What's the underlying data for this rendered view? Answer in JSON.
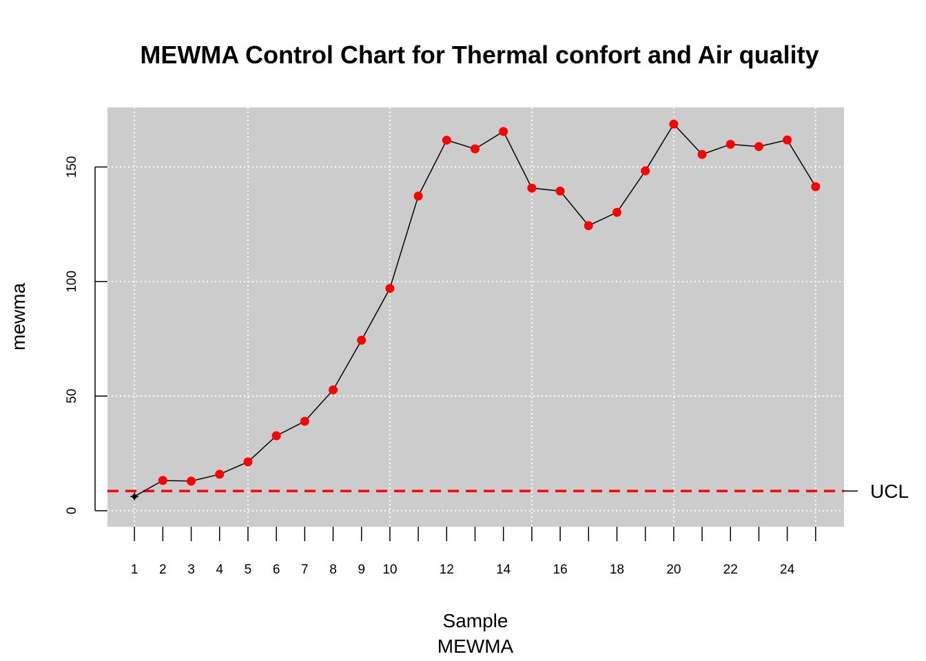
{
  "chart_data": {
    "type": "line",
    "title": "MEWMA Control Chart for Thermal confort and Air quality",
    "xlabel": "Sample",
    "xsublabel": "MEWMA",
    "ylabel": "mewma",
    "xlim": [
      0.05,
      26.0
    ],
    "ylim": [
      -7,
      176
    ],
    "x_ticks": [
      1,
      2,
      3,
      4,
      5,
      6,
      7,
      8,
      9,
      10,
      11,
      12,
      13,
      14,
      15,
      16,
      17,
      18,
      19,
      20,
      21,
      22,
      23,
      24,
      25
    ],
    "x_tick_labels": [
      "1",
      "2",
      "3",
      "4",
      "5",
      "6",
      "7",
      "8",
      "9",
      "10",
      "",
      "12",
      "",
      "14",
      "",
      "16",
      "",
      "18",
      "",
      "20",
      "",
      "22",
      "",
      "24",
      ""
    ],
    "y_ticks": [
      0,
      50,
      100,
      150
    ],
    "y_tick_labels": [
      "0",
      "50",
      "100",
      "150"
    ],
    "grid": true,
    "ucl": 8.6,
    "ucl_label": "UCL",
    "series": [
      {
        "x": [
          1,
          2,
          3,
          4,
          5,
          6,
          7,
          8,
          9,
          10,
          11,
          12,
          13,
          14,
          15,
          16,
          17,
          18,
          19,
          20,
          21,
          22,
          23,
          24,
          25
        ],
        "values": [
          6.2,
          13.2,
          12.9,
          15.9,
          21.3,
          32.7,
          39.0,
          52.7,
          74.4,
          97.0,
          137.3,
          161.7,
          157.9,
          165.5,
          140.8,
          139.5,
          124.4,
          130.2,
          148.3,
          168.7,
          155.5,
          159.9,
          158.9,
          161.8,
          141.4
        ]
      }
    ],
    "colors": {
      "panel": "#cccccc",
      "grid": "#ffffff",
      "line": "#000000",
      "out_of_control": "#ff0000",
      "in_control": "#000000",
      "ucl": "#ff0000"
    }
  }
}
